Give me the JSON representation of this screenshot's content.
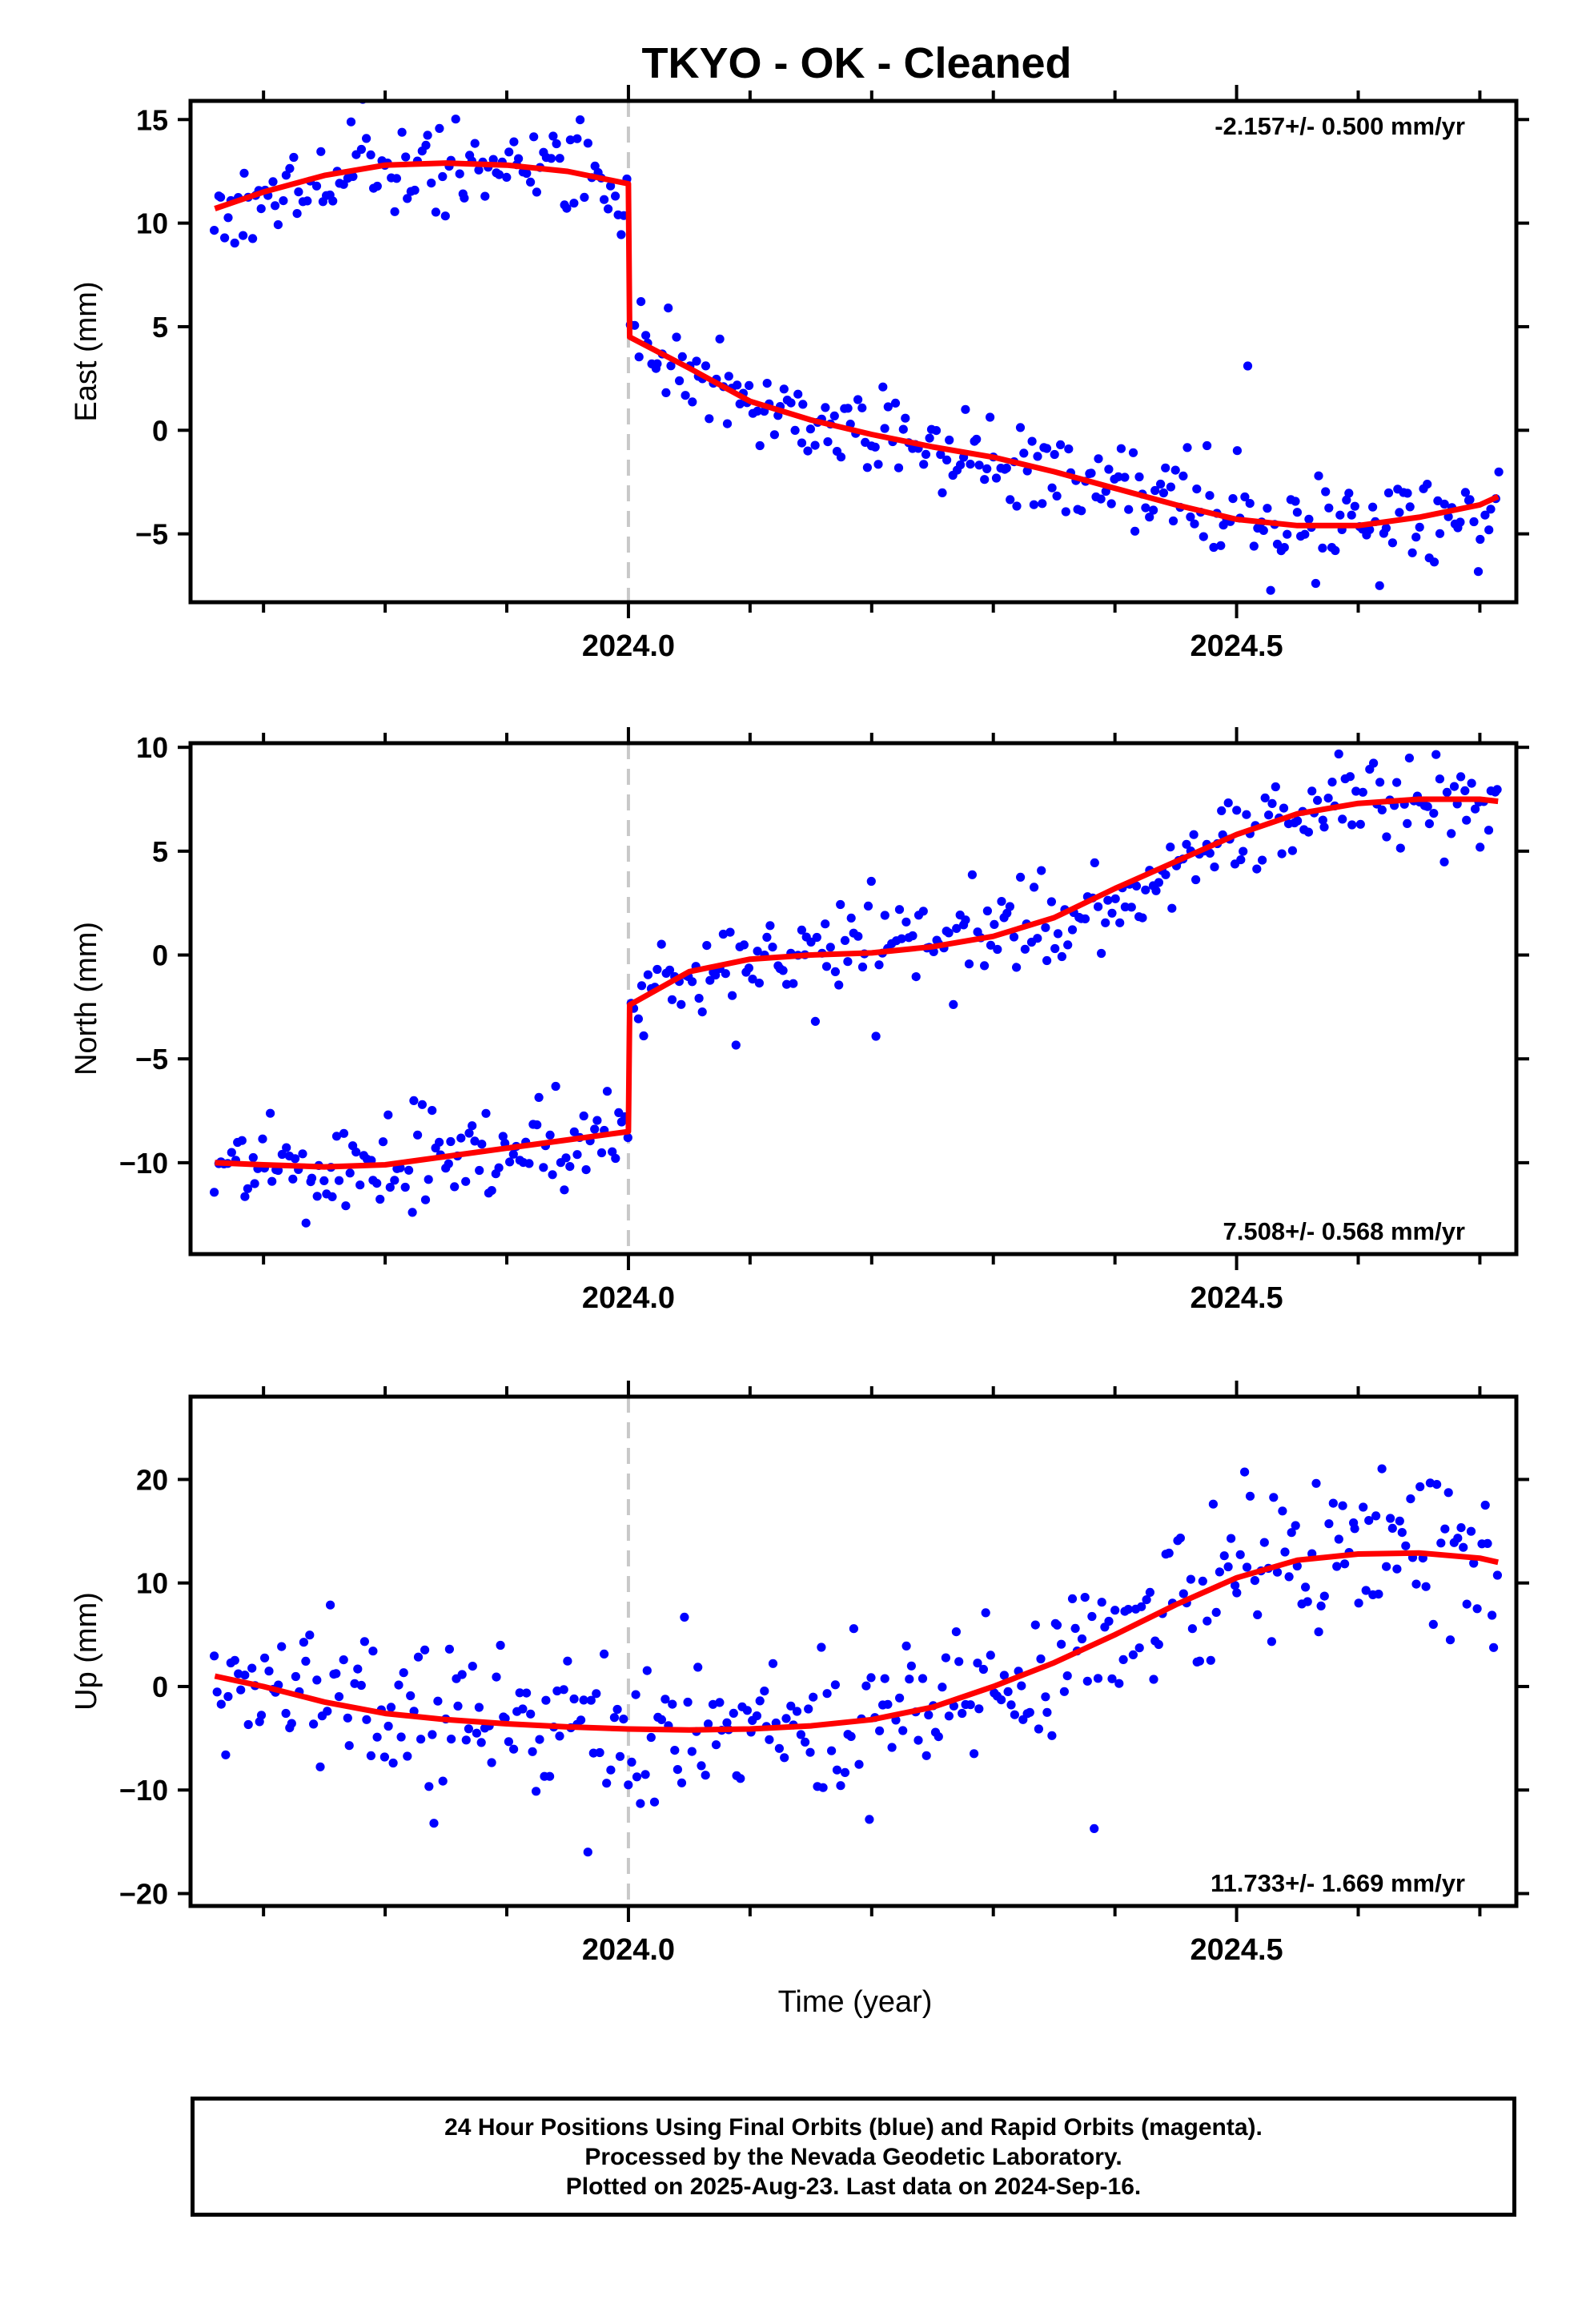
{
  "title": "TKYO  - OK - Cleaned",
  "colors": {
    "data": "#0000ff",
    "fit": "#ff0000",
    "event_line": "#c8c8c8",
    "frame": "#000000"
  },
  "xlabel": "Time (year)",
  "footer": {
    "line1": "24 Hour Positions Using Final Orbits (blue) and Rapid Orbits (magenta).",
    "line2": "Processed by the Nevada Geodetic Laboratory.",
    "line3": "Plotted on 2025-Aug-23. Last data on 2024-Sep-16."
  },
  "chart_data": [
    {
      "type": "scatter",
      "name": "east",
      "ylabel": "East (mm)",
      "rate": "-2.157+/- 0.500 mm/yr",
      "xlim": [
        2023.64,
        2024.73
      ],
      "ylim": [
        -8.3,
        15.9
      ],
      "yticks": [
        15,
        10,
        5,
        0,
        -5
      ],
      "ytick_labels": [
        "15",
        "10",
        "5",
        "0",
        "−5"
      ],
      "xticks": [
        2024.0,
        2024.5
      ],
      "xtick_labels": [
        "2024.0",
        "2024.5"
      ],
      "event_x": 2024.0,
      "fit": {
        "x": [
          2023.66,
          2023.7,
          2023.75,
          2023.8,
          2023.85,
          2023.9,
          2023.95,
          2024.0,
          2024.001,
          2024.05,
          2024.1,
          2024.15,
          2024.2,
          2024.25,
          2024.3,
          2024.35,
          2024.4,
          2024.45,
          2024.5,
          2024.55,
          2024.6,
          2024.65,
          2024.7,
          2024.715
        ],
        "y": [
          10.7,
          11.5,
          12.3,
          12.8,
          12.9,
          12.8,
          12.5,
          11.9,
          4.5,
          3.0,
          1.4,
          0.5,
          -0.2,
          -0.8,
          -1.3,
          -2.0,
          -2.8,
          -3.6,
          -4.3,
          -4.6,
          -4.6,
          -4.2,
          -3.6,
          -3.2
        ]
      },
      "points": {
        "x_start": 2023.66,
        "x_end": 2024.715,
        "count": 380,
        "break_x": 2024.0,
        "spread": 1.1,
        "seed": 11
      }
    },
    {
      "type": "scatter",
      "name": "north",
      "ylabel": "North (mm)",
      "rate": "7.508+/- 0.568 mm/yr",
      "xlim": [
        2023.64,
        2024.73
      ],
      "ylim": [
        -14.4,
        10.2
      ],
      "yticks": [
        10,
        5,
        0,
        -5,
        -10
      ],
      "ytick_labels": [
        "10",
        "5",
        "0",
        "−5",
        "−10"
      ],
      "xticks": [
        2024.0,
        2024.5
      ],
      "xtick_labels": [
        "2024.0",
        "2024.5"
      ],
      "event_x": 2024.0,
      "fit": {
        "x": [
          2023.66,
          2023.7,
          2023.75,
          2023.8,
          2023.85,
          2023.9,
          2023.95,
          2024.0,
          2024.001,
          2024.05,
          2024.1,
          2024.15,
          2024.2,
          2024.25,
          2024.3,
          2024.35,
          2024.4,
          2024.45,
          2024.5,
          2024.55,
          2024.6,
          2024.65,
          2024.7,
          2024.715
        ],
        "y": [
          -10.0,
          -10.1,
          -10.2,
          -10.1,
          -9.7,
          -9.3,
          -8.9,
          -8.5,
          -2.4,
          -0.8,
          -0.2,
          0.0,
          0.1,
          0.4,
          0.9,
          1.8,
          3.2,
          4.5,
          5.8,
          6.8,
          7.3,
          7.5,
          7.5,
          7.4
        ]
      },
      "points": {
        "x_start": 2023.66,
        "x_end": 2024.715,
        "count": 380,
        "break_x": 2024.0,
        "spread": 1.1,
        "seed": 23
      }
    },
    {
      "type": "scatter",
      "name": "up",
      "ylabel": "Up (mm)",
      "rate": "11.733+/- 1.669 mm/yr",
      "xlim": [
        2023.64,
        2024.73
      ],
      "ylim": [
        -21.2,
        28.0
      ],
      "yticks": [
        20,
        10,
        0,
        -10,
        -20
      ],
      "ytick_labels": [
        "20",
        "10",
        "0",
        "−10",
        "−20"
      ],
      "xticks": [
        2024.0,
        2024.5
      ],
      "xtick_labels": [
        "2024.0",
        "2024.5"
      ],
      "event_x": 2024.0,
      "fit": {
        "x": [
          2023.66,
          2023.7,
          2023.75,
          2023.8,
          2023.85,
          2023.9,
          2023.95,
          2024.0,
          2024.05,
          2024.1,
          2024.15,
          2024.2,
          2024.25,
          2024.3,
          2024.35,
          2024.4,
          2024.45,
          2024.5,
          2024.55,
          2024.6,
          2024.65,
          2024.7,
          2024.715
        ],
        "y": [
          1.0,
          0.0,
          -1.5,
          -2.6,
          -3.2,
          -3.6,
          -3.9,
          -4.1,
          -4.2,
          -4.1,
          -3.8,
          -3.2,
          -2.0,
          0.0,
          2.3,
          5.0,
          7.9,
          10.5,
          12.2,
          12.8,
          12.9,
          12.4,
          12.0
        ]
      },
      "points": {
        "x_start": 2023.66,
        "x_end": 2024.715,
        "count": 380,
        "break_x": null,
        "spread": 3.6,
        "seed": 37
      }
    }
  ]
}
